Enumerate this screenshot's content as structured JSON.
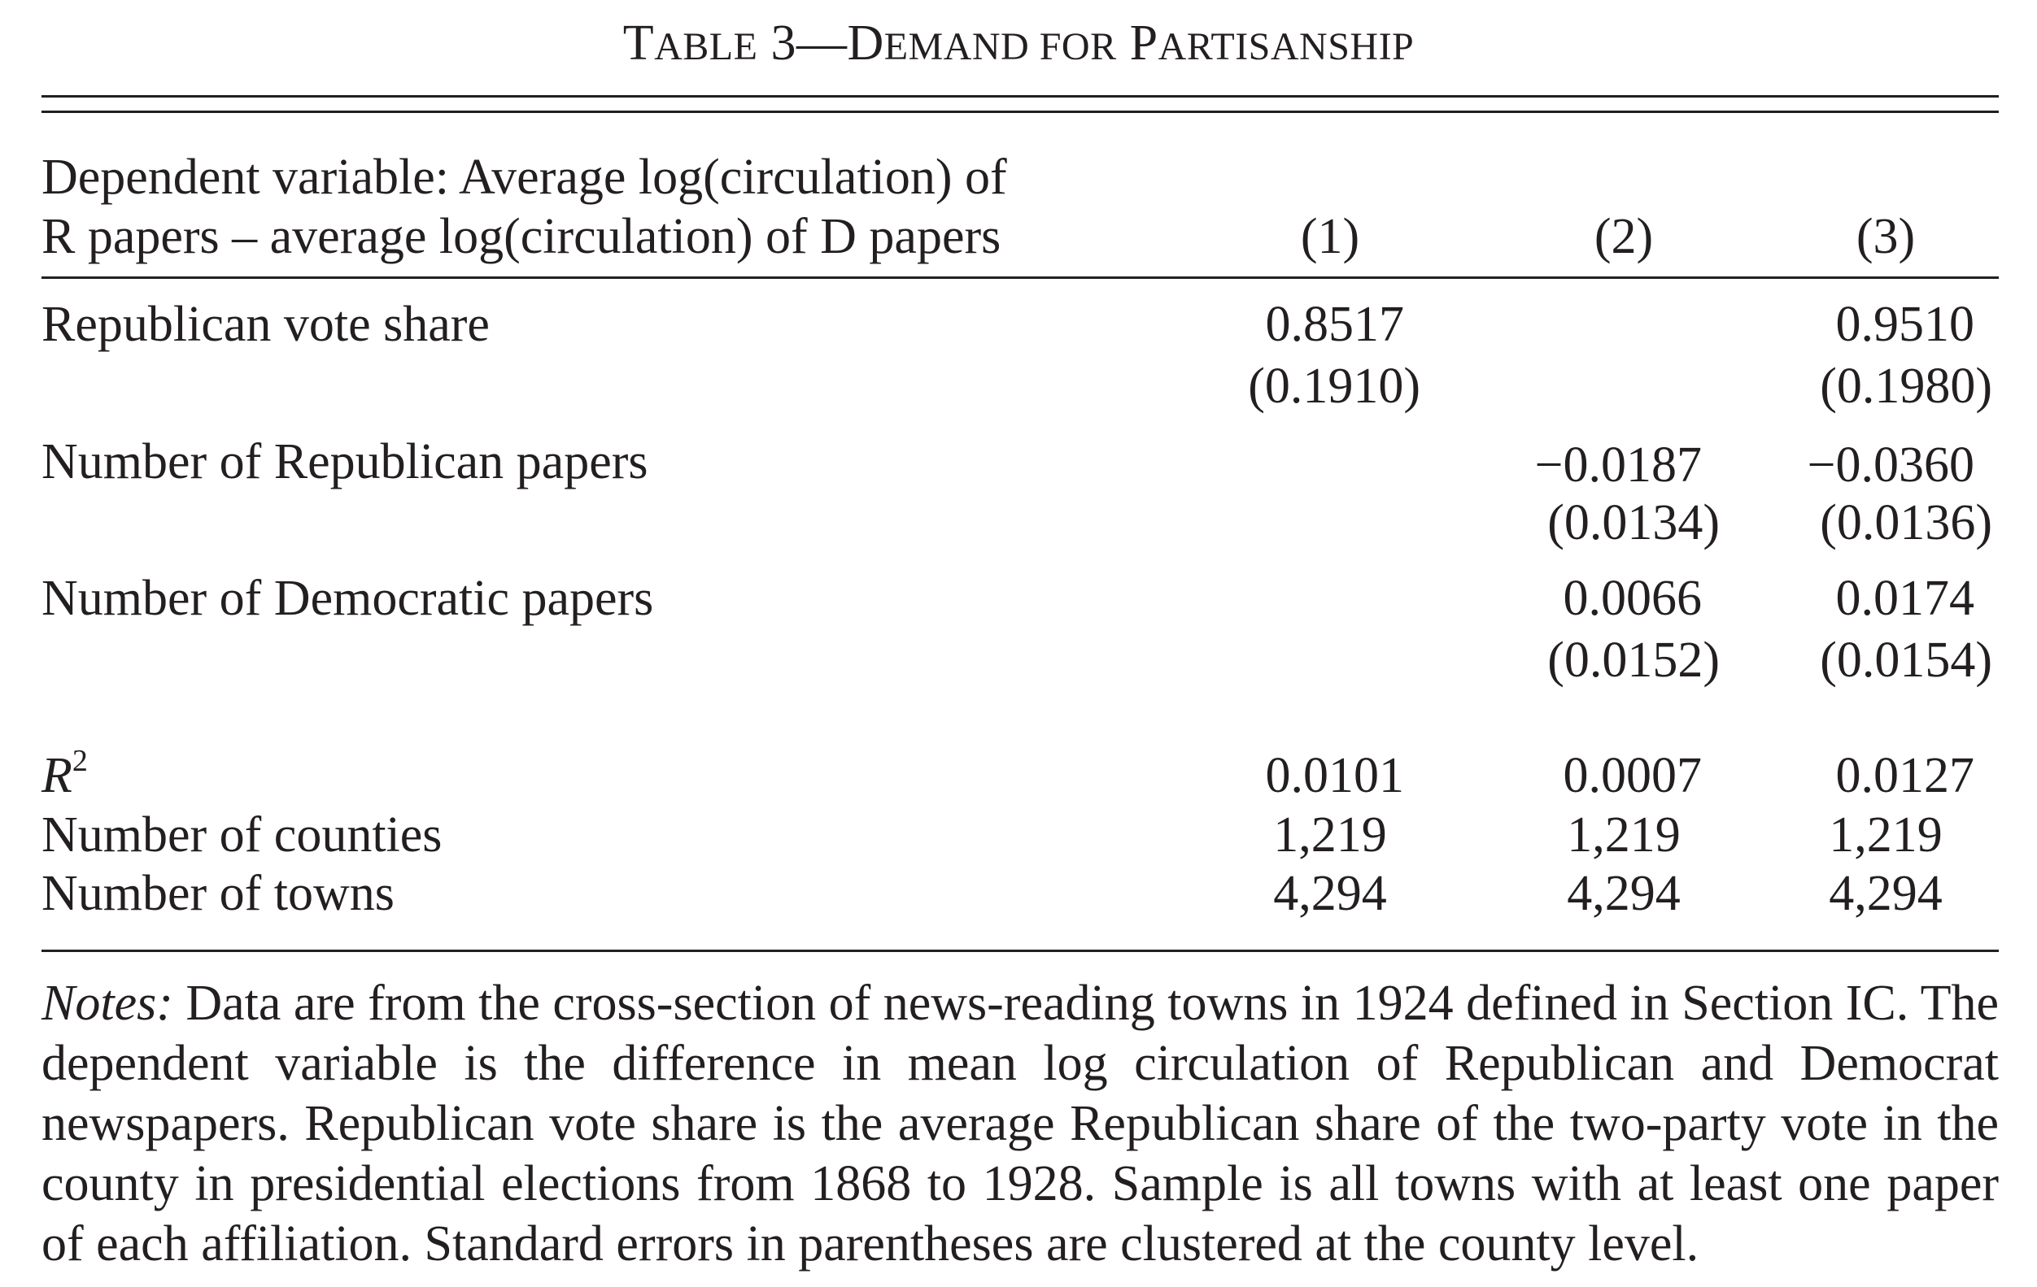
{
  "table": {
    "title_prefix": "T",
    "title_rest_sc": "ABLE",
    "title_number": "3—",
    "title_D": "D",
    "title_emand_sc": "EMAND FOR",
    "title_P": "P",
    "title_artisanship_sc": "ARTISANSHIP",
    "dependent_var_line1": "Dependent variable: Average log(circulation) of",
    "dependent_var_line2": "R papers – average log(circulation) of D papers",
    "columns": [
      "(1)",
      "(2)",
      "(3)"
    ],
    "rows": [
      {
        "label": "Republican vote share",
        "coef": [
          "0.8517",
          "",
          "0.9510"
        ],
        "se": [
          "(0.1910)",
          "",
          "(0.1980)"
        ]
      },
      {
        "label": "Number of Republican papers",
        "coef": [
          "",
          "−0.0187",
          "−0.0360"
        ],
        "se": [
          "",
          "(0.0134)",
          "(0.0136)"
        ]
      },
      {
        "label": "Number of Democratic papers",
        "coef": [
          "",
          "0.0066",
          "0.0174"
        ],
        "se": [
          "",
          "(0.0152)",
          "(0.0154)"
        ]
      }
    ],
    "stats": [
      {
        "label_main": "R",
        "label_sup": "2",
        "values": [
          "0.0101",
          "0.0007",
          "0.0127"
        ]
      },
      {
        "label": "Number of counties",
        "values": [
          "1,219",
          "1,219",
          "1,219"
        ]
      },
      {
        "label": "Number of towns",
        "values": [
          "4,294",
          "4,294",
          "4,294"
        ]
      }
    ],
    "notes_label": "Notes:",
    "notes_text": " Data are from the cross-section of news-reading towns in 1924 defined in Section IC. The dependent variable is the difference in mean log circulation of Republican and Democrat newspapers. Republican vote share is the average Republican share of the two-party vote in the county in presidential elections from 1868 to 1928. Sample is all towns with at least one paper of each affiliation. Standard errors in parentheses are clustered at the county level."
  }
}
